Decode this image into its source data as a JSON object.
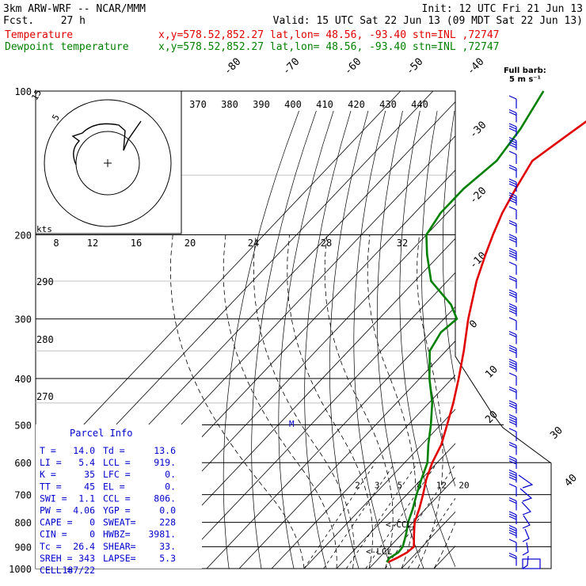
{
  "header": {
    "model": "3km ARW-WRF -- NCAR/MMM",
    "init": "Init: 12 UTC Fri 21 Jun 13",
    "fcst_label": "Fcst.",
    "fcst_value": "27 h",
    "valid": "Valid: 15 UTC Sat 22 Jun 13 (09 MDT Sat 22 Jun 13)",
    "temp_label": "Temperature",
    "dew_label": "Dewpoint temperature",
    "loc_temp": "x,y=578.52,852.27   lat,lon= 48.56, -93.40   stn=INL ,72747",
    "loc_dew": "x,y=578.52,852.27   lat,lon= 48.56, -93.40   stn=INL ,72747",
    "barb_title": "Full barb:",
    "barb_units": "5 m s⁻¹"
  },
  "colors": {
    "temperature": "#e00000",
    "dewpoint": "#008000",
    "text": "#000000",
    "accent": "#0000cc"
  },
  "chart_data": {
    "type": "line",
    "title": "",
    "ylabel": "",
    "y_axis": "pressure (hPa), log scale",
    "ylim": [
      1000,
      100
    ],
    "pressure_ticks": [
      "100",
      "200",
      "300",
      "400",
      "500",
      "600",
      "700",
      "800",
      "900",
      "1000"
    ],
    "isotherm_labels": [
      "-80",
      "-70",
      "-60",
      "-50",
      "-40",
      "-30",
      "-20",
      "-10",
      "0",
      "10",
      "20",
      "30",
      "40"
    ],
    "mixing_ratio_labels": [
      "2",
      "3",
      "5",
      "8",
      "12",
      "20"
    ],
    "theta_labels_lower": [
      "290",
      "280",
      "270"
    ],
    "series": [
      {
        "name": "Temperature",
        "color": "#e00000",
        "points": [
          {
            "p": 970,
            "t": 14.0
          },
          {
            "p": 950,
            "t": 15.5
          },
          {
            "p": 925,
            "t": 17.0
          },
          {
            "p": 900,
            "t": 17.4
          },
          {
            "p": 850,
            "t": 14.0
          },
          {
            "p": 800,
            "t": 10.5
          },
          {
            "p": 750,
            "t": 8.0
          },
          {
            "p": 700,
            "t": 5.0
          },
          {
            "p": 650,
            "t": 1.5
          },
          {
            "p": 600,
            "t": -1.5
          },
          {
            "p": 550,
            "t": -4.0
          },
          {
            "p": 500,
            "t": -8.0
          },
          {
            "p": 450,
            "t": -12.5
          },
          {
            "p": 400,
            "t": -18.0
          },
          {
            "p": 350,
            "t": -24.5
          },
          {
            "p": 300,
            "t": -32.5
          },
          {
            "p": 250,
            "t": -41.0
          },
          {
            "p": 220,
            "t": -46.0
          },
          {
            "p": 200,
            "t": -49.5
          },
          {
            "p": 180,
            "t": -53.0
          },
          {
            "p": 160,
            "t": -56.0
          },
          {
            "p": 140,
            "t": -59.0
          },
          {
            "p": 125,
            "t": -56.0
          },
          {
            "p": 112,
            "t": -53.0
          },
          {
            "p": 100,
            "t": -52.0
          }
        ]
      },
      {
        "name": "Dewpoint temperature",
        "color": "#008000",
        "points": [
          {
            "p": 970,
            "t": 13.6
          },
          {
            "p": 950,
            "t": 13.2
          },
          {
            "p": 925,
            "t": 14.3
          },
          {
            "p": 900,
            "t": 14.0
          },
          {
            "p": 850,
            "t": 11.5
          },
          {
            "p": 800,
            "t": 8.5
          },
          {
            "p": 750,
            "t": 6.0
          },
          {
            "p": 700,
            "t": 3.0
          },
          {
            "p": 650,
            "t": 0.0
          },
          {
            "p": 600,
            "t": -3.0
          },
          {
            "p": 550,
            "t": -8.0
          },
          {
            "p": 500,
            "t": -13.0
          },
          {
            "p": 450,
            "t": -19.0
          },
          {
            "p": 400,
            "t": -27.0
          },
          {
            "p": 350,
            "t": -35.0
          },
          {
            "p": 320,
            "t": -37.0
          },
          {
            "p": 300,
            "t": -36.0
          },
          {
            "p": 280,
            "t": -42.0
          },
          {
            "p": 250,
            "t": -55.0
          },
          {
            "p": 220,
            "t": -64.0
          },
          {
            "p": 200,
            "t": -70.0
          },
          {
            "p": 180,
            "t": -72.0
          },
          {
            "p": 160,
            "t": -72.0
          },
          {
            "p": 140,
            "t": -70.0
          },
          {
            "p": 120,
            "t": -72.0
          },
          {
            "p": 100,
            "t": -76.0
          }
        ]
      }
    ],
    "annotations": [
      "<-CCL",
      "<-LCL",
      "M"
    ]
  },
  "hodograph": {
    "units_label": "kts",
    "ring_label": "5",
    "ring_label2": "15",
    "speed_labels": [
      "8",
      "12",
      "16",
      "20",
      "24",
      "28",
      "32"
    ],
    "theta_labels": [
      "370",
      "380",
      "390",
      "400",
      "410",
      "420",
      "430",
      "440"
    ]
  },
  "parcel": {
    "title": "Parcel Info",
    "rows": [
      [
        "T  =",
        "14.0",
        "Td =",
        "13.6"
      ],
      [
        "LI =",
        "5.4",
        "LCL =",
        "919."
      ],
      [
        "K  =",
        "35",
        "LFC =",
        "0."
      ],
      [
        "TT =",
        "45",
        "EL  =",
        "0."
      ],
      [
        "SWI =",
        "1.1",
        "CCL =",
        "806."
      ],
      [
        "PW =",
        "4.06",
        "YGP =",
        "0.0"
      ],
      [
        "CAPE =",
        "0",
        "SWEAT=",
        "228"
      ],
      [
        "CIN =",
        "0",
        "HWBZ=",
        "3981."
      ],
      [
        "Tc =",
        "26.4",
        "SHEAR=",
        "33."
      ],
      [
        "SREH =",
        "343",
        "LAPSE=",
        "5.3"
      ],
      [
        "CELL =",
        "187/22",
        "",
        ""
      ]
    ]
  }
}
